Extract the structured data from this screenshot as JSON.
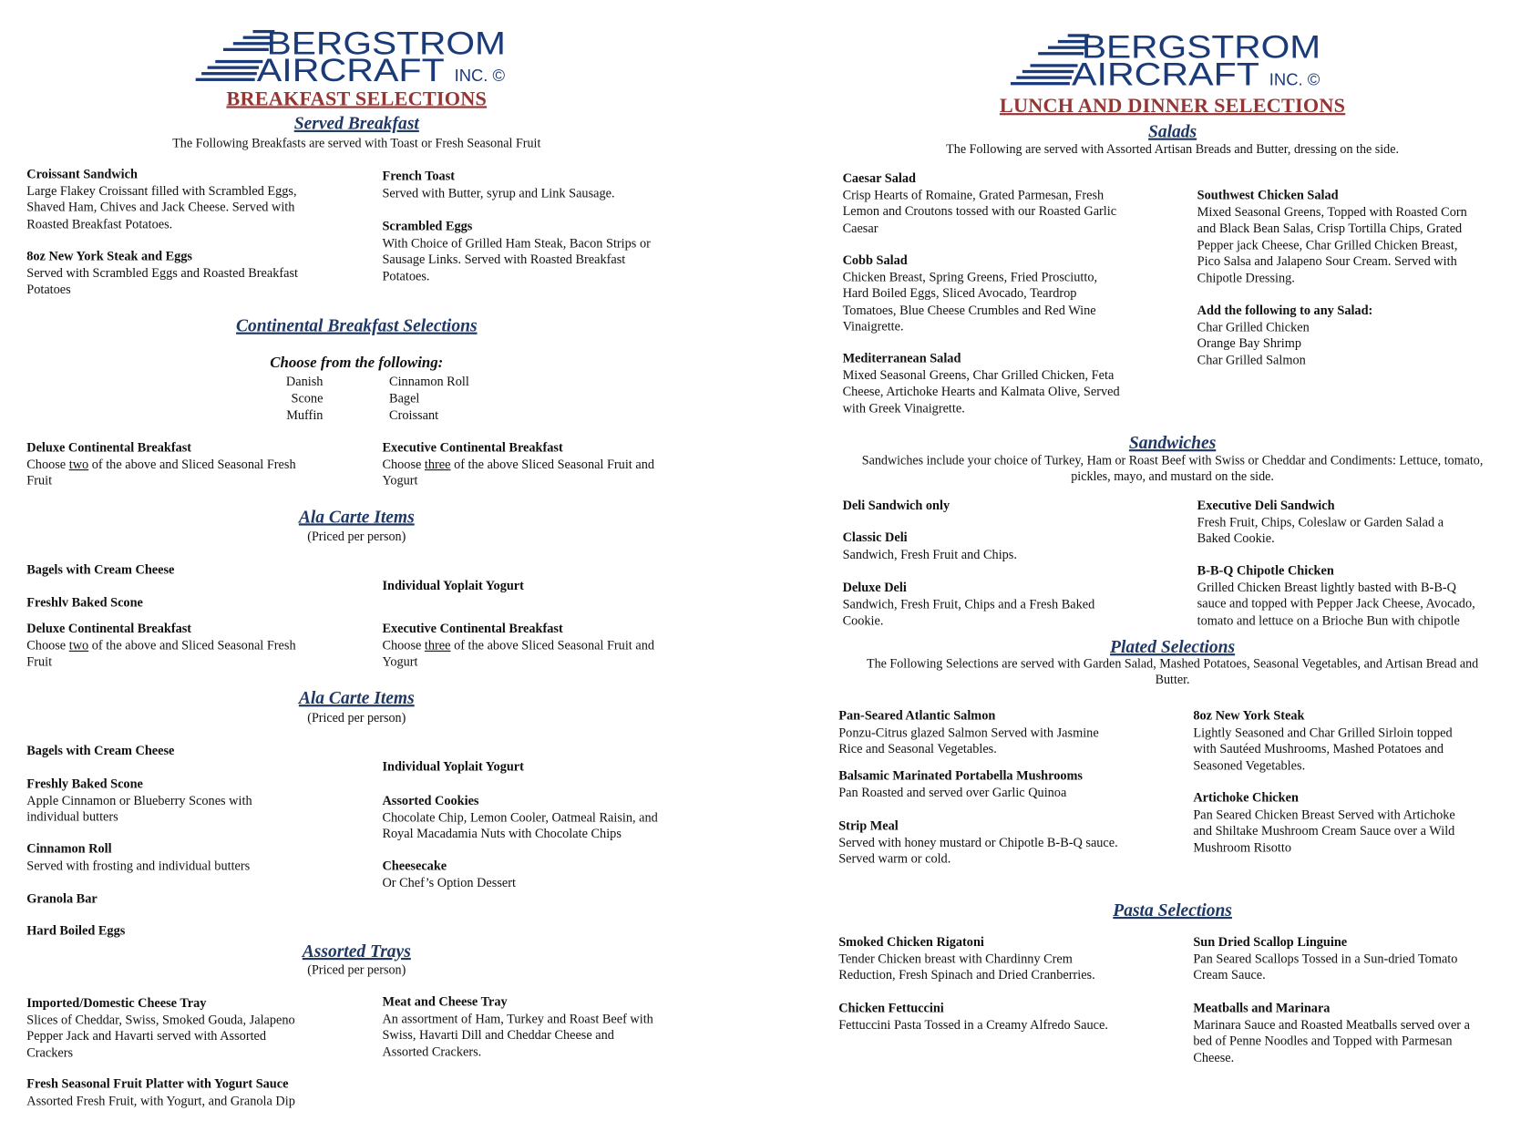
{
  "colors": {
    "brand_navy": "#1a3a78",
    "title_red": "#943634",
    "heading_navy": "#1f3864"
  },
  "left": {
    "logo": {
      "line1": "BERGSTROM",
      "line2": "AIRCRAFT",
      "suffix": "INC. ©"
    },
    "title": "BREAKFAST SELECTIONS",
    "blocks": [
      {
        "type": "heading",
        "text": "Served Breakfast"
      },
      {
        "type": "note",
        "lines": [
          "The Following Breakfasts are served with Toast or Fresh Seasonal Fruit"
        ]
      },
      {
        "type": "item",
        "title": "Croissant Sandwich",
        "lines": [
          "Large Flakey Croissant filled with Scrambled Eggs,",
          "Shaved Ham, Chives and Jack Cheese. Served with",
          "Roasted Breakfast Potatoes."
        ]
      },
      {
        "type": "item",
        "title": "8oz New York Steak and Eggs",
        "lines": [
          "Served with Scrambled Eggs and Roasted Breakfast",
          "Potatoes"
        ]
      },
      {
        "type": "item",
        "title": "French Toast",
        "lines": [
          "Served with Butter, syrup and Link Sausage."
        ]
      },
      {
        "type": "item",
        "title": "Scrambled Eggs",
        "lines": [
          "With Choice of Grilled Ham Steak, Bacon Strips or",
          "Sausage Links. Served with Roasted Breakfast",
          "Potatoes."
        ]
      },
      {
        "type": "heading",
        "text": "Continental Breakfast Selections"
      },
      {
        "type": "subheading",
        "text": "Choose from the following:"
      },
      {
        "type": "list",
        "align": "right",
        "lines": [
          "Danish",
          "Scone",
          "Muffin"
        ]
      },
      {
        "type": "list",
        "align": "left",
        "lines": [
          "Cinnamon Roll",
          "Bagel",
          "Croissant"
        ]
      },
      {
        "type": "item",
        "title": "Deluxe Continental Breakfast",
        "lines": [
          "Choose two of the above and Sliced Seasonal Fresh",
          "Fruit"
        ],
        "underline": "two"
      },
      {
        "type": "item",
        "title": "Executive Continental Breakfast",
        "lines": [
          "Choose three of the above Sliced Seasonal Fruit and",
          "Yogurt"
        ],
        "underline": "three"
      },
      {
        "type": "heading",
        "text": "Ala Carte Items"
      },
      {
        "type": "note",
        "lines": [
          "(Priced per person)"
        ]
      },
      {
        "type": "item",
        "title": "Bagels with Cream Cheese",
        "lines": []
      },
      {
        "type": "item",
        "title": "Freshlv Baked Scone",
        "lines": []
      },
      {
        "type": "item",
        "title": "Individual Yoplait Yogurt",
        "lines": []
      },
      {
        "type": "item",
        "title": "Deluxe Continental Breakfast",
        "lines": [
          "Choose two of the above and Sliced Seasonal Fresh",
          "Fruit"
        ],
        "underline": "two"
      },
      {
        "type": "item",
        "title": "Executive Continental Breakfast",
        "lines": [
          "Choose three of the above Sliced Seasonal Fruit and",
          "Yogurt"
        ],
        "underline": "three"
      },
      {
        "type": "heading",
        "text": "Ala Carte Items"
      },
      {
        "type": "note",
        "lines": [
          "(Priced per person)"
        ]
      },
      {
        "type": "item",
        "title": "Bagels with Cream Cheese",
        "lines": []
      },
      {
        "type": "item",
        "title": "Freshly Baked Scone",
        "lines": [
          "Apple Cinnamon or Blueberry Scones with",
          "individual butters"
        ]
      },
      {
        "type": "item",
        "title": "Cinnamon Roll",
        "lines": [
          "Served with frosting and individual butters"
        ]
      },
      {
        "type": "item",
        "title": "Granola Bar",
        "lines": []
      },
      {
        "type": "item",
        "title": "Hard Boiled Eggs",
        "lines": []
      },
      {
        "type": "item",
        "title": "Individual Yoplait Yogurt",
        "lines": []
      },
      {
        "type": "item",
        "title": "Assorted Cookies",
        "lines": [
          "Chocolate Chip, Lemon Cooler, Oatmeal Raisin, and",
          "Royal Macadamia Nuts with Chocolate Chips"
        ]
      },
      {
        "type": "item",
        "title": "Cheesecake",
        "lines": [
          "Or Chef’s Option Dessert"
        ]
      },
      {
        "type": "heading",
        "text": "Assorted Trays"
      },
      {
        "type": "note",
        "lines": [
          "(Priced per person)"
        ]
      },
      {
        "type": "item",
        "title": "Imported/Domestic Cheese Tray",
        "lines": [
          "Slices of Cheddar, Swiss, Smoked Gouda, Jalapeno",
          "Pepper Jack and Havarti served with Assorted",
          "Crackers"
        ]
      },
      {
        "type": "item",
        "title": "Fresh Seasonal Fruit Platter with Yogurt Sauce",
        "lines": [
          "Assorted Fresh Fruit, with Yogurt, and Granola Dip"
        ]
      },
      {
        "type": "item",
        "title": "Meat and Cheese Tray",
        "lines": [
          "An assortment of Ham, Turkey and Roast Beef with",
          "Swiss, Havarti Dill and Cheddar Cheese and",
          "Assorted Crackers."
        ]
      }
    ]
  },
  "right": {
    "logo": {
      "line1": "BERGSTROM",
      "line2": "AIRCRAFT",
      "suffix": "INC. ©"
    },
    "title": "LUNCH AND DINNER SELECTIONS",
    "blocks": [
      {
        "type": "heading",
        "text": "Salads"
      },
      {
        "type": "note",
        "lines": [
          "The Following are served with Assorted Artisan Breads and Butter, dressing on the side."
        ]
      },
      {
        "type": "item",
        "title": "Caesar Salad",
        "lines": [
          "Crisp Hearts of Romaine, Grated Parmesan, Fresh",
          "Lemon and Croutons tossed with our Roasted Garlic",
          "Caesar"
        ]
      },
      {
        "type": "item",
        "title": "Cobb Salad",
        "lines": [
          "Chicken Breast, Spring Greens, Fried Prosciutto,",
          "Hard Boiled Eggs, Sliced Avocado, Teardrop",
          "Tomatoes, Blue Cheese Crumbles and Red Wine",
          "Vinaigrette."
        ]
      },
      {
        "type": "item",
        "title": "Mediterranean Salad",
        "lines": [
          "Mixed Seasonal Greens, Char Grilled Chicken, Feta",
          "Cheese, Artichoke Hearts and Kalmata Olive, Served",
          "with Greek Vinaigrette."
        ]
      },
      {
        "type": "item",
        "title": "Southwest Chicken Salad",
        "lines": [
          "Mixed Seasonal Greens, Topped with Roasted Corn",
          "and Black Bean Salas, Crisp Tortilla Chips, Grated",
          "Pepper jack Cheese, Char Grilled Chicken Breast,",
          "Pico Salsa and Jalapeno Sour Cream. Served with",
          "Chipotle Dressing."
        ]
      },
      {
        "type": "item",
        "title": "Add the following to any Salad:",
        "lines": [
          "Char Grilled Chicken",
          "Orange Bay Shrimp",
          "Char Grilled Salmon"
        ]
      },
      {
        "type": "heading",
        "text": "Sandwiches"
      },
      {
        "type": "note",
        "lines": [
          "Sandwiches include your choice of Turkey, Ham or Roast Beef with Swiss or Cheddar and Condiments: Lettuce, tomato,",
          "pickles, mayo, and mustard on the side."
        ]
      },
      {
        "type": "item",
        "title": "Deli Sandwich only",
        "lines": []
      },
      {
        "type": "item",
        "title": "Classic Deli",
        "lines": [
          "Sandwich, Fresh Fruit and Chips."
        ]
      },
      {
        "type": "item",
        "title": "Deluxe Deli",
        "lines": [
          "Sandwich, Fresh Fruit, Chips and a Fresh Baked",
          "Cookie."
        ]
      },
      {
        "type": "item",
        "title": "Executive Deli Sandwich",
        "lines": [
          "Fresh Fruit, Chips, Coleslaw or Garden Salad a",
          "Baked Cookie."
        ]
      },
      {
        "type": "item",
        "title": "B-B-Q Chipotle Chicken",
        "lines": [
          "Grilled Chicken Breast lightly basted with B-B-Q",
          "sauce and topped with Pepper Jack Cheese, Avocado,",
          "tomato and lettuce on a Brioche Bun with chipotle"
        ]
      },
      {
        "type": "heading",
        "text": "Plated Selections"
      },
      {
        "type": "note",
        "lines": [
          "The Following Selections are served with Garden Salad, Mashed Potatoes, Seasonal  Vegetables, and Artisan Bread and",
          "Butter."
        ]
      },
      {
        "type": "item",
        "title": "Pan-Seared Atlantic Salmon",
        "lines": [
          "Ponzu-Citrus glazed Salmon Served with Jasmine",
          "Rice and Seasonal Vegetables."
        ]
      },
      {
        "type": "item",
        "title": "Balsamic Marinated Portabella Mushrooms",
        "lines": [
          "Pan Roasted and served over Garlic Quinoa"
        ]
      },
      {
        "type": "item",
        "title": "Strip Meal",
        "lines": [
          "Served with honey mustard or Chipotle B-B-Q sauce.",
          "Served warm or cold."
        ]
      },
      {
        "type": "item",
        "title": "8oz New York Steak",
        "lines": [
          "Lightly Seasoned and Char Grilled Sirloin topped",
          "with Sautéed Mushrooms, Mashed Potatoes and",
          "Seasoned Vegetables."
        ]
      },
      {
        "type": "item",
        "title": "Artichoke Chicken",
        "lines": [
          "Pan Seared Chicken Breast Served with Artichoke",
          "and Shiltake Mushroom Cream Sauce over a Wild",
          "Mushroom Risotto"
        ]
      },
      {
        "type": "heading",
        "text": "Pasta Selections"
      },
      {
        "type": "item",
        "title": "Smoked Chicken Rigatoni",
        "lines": [
          "Tender Chicken breast with Chardinny Crem",
          "Reduction, Fresh Spinach and Dried Cranberries."
        ]
      },
      {
        "type": "item",
        "title": "Chicken Fettuccini",
        "lines": [
          "Fettuccini Pasta Tossed in a Creamy Alfredo Sauce."
        ]
      },
      {
        "type": "item",
        "title": "Sun Dried Scallop Linguine",
        "lines": [
          "Pan Seared Scallops Tossed in a Sun-dried Tomato",
          "Cream Sauce."
        ]
      },
      {
        "type": "item",
        "title": "Meatballs and Marinara",
        "lines": [
          "Marinara Sauce and Roasted Meatballs served over a",
          "bed of Penne Noodles and Topped with Parmesan",
          "Cheese."
        ]
      }
    ]
  }
}
